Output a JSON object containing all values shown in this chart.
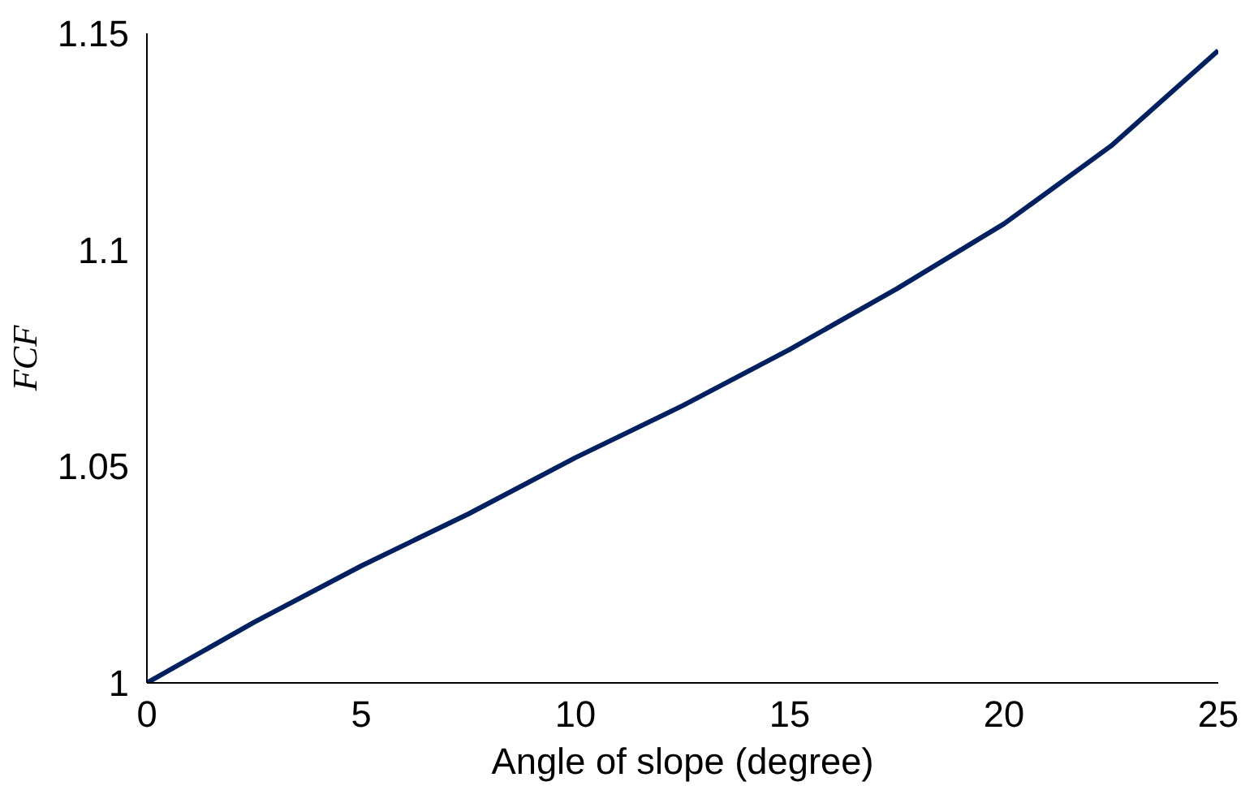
{
  "chart_data": {
    "type": "line",
    "xlabel": "Angle of slope (degree)",
    "ylabel": "FCF",
    "x": [
      0,
      2.5,
      5,
      7.5,
      10,
      12.5,
      15,
      17.5,
      20,
      22.5,
      25
    ],
    "series": [
      {
        "color": "#002060",
        "values": [
          1,
          1.014,
          1.027,
          1.039,
          1.052,
          1.064,
          1.077,
          1.091,
          1.106,
          1.124,
          1.146
        ]
      }
    ],
    "xlim": [
      0,
      25
    ],
    "ylim": [
      1,
      1.15
    ],
    "xticks": [
      0,
      5,
      10,
      15,
      20,
      25
    ],
    "yticks": [
      1,
      1.05,
      1.1,
      1.15
    ],
    "grid": false,
    "marker": "none",
    "line_style": "solid"
  }
}
